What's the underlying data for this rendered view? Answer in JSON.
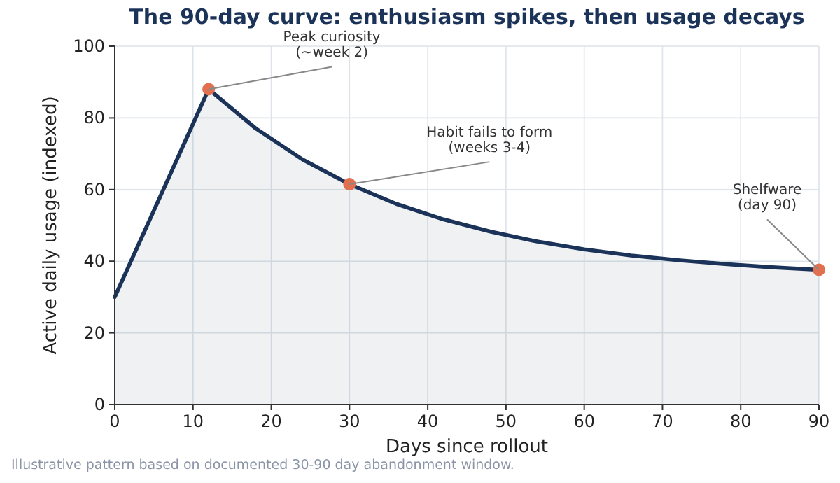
{
  "chart_data": {
    "type": "area",
    "title": "The 90-day curve: enthusiasm spikes, then usage decays",
    "xlabel": "Days since rollout",
    "ylabel": "Active daily usage (indexed)",
    "xlim": [
      0,
      90
    ],
    "xticks": [
      0,
      10,
      20,
      30,
      40,
      50,
      60,
      70,
      80,
      90
    ],
    "ylim": [
      0,
      100
    ],
    "yticks": [
      0,
      20,
      40,
      60,
      80,
      100
    ],
    "grid": true,
    "series": [
      {
        "color": "#1b3358",
        "x": [
          0,
          12,
          18,
          24,
          30,
          36,
          42,
          48,
          54,
          60,
          66,
          72,
          78,
          84,
          90
        ],
        "values": [
          30,
          88,
          77.1,
          68.4,
          61.5,
          56,
          51.7,
          48.3,
          45.5,
          43.3,
          41.6,
          40.3,
          39.2,
          38.3,
          37.6
        ]
      },
      {
        "type": "scatter",
        "color": "#e07050",
        "marker": "circle",
        "x": [
          12,
          30,
          90
        ],
        "values": [
          88,
          61.5,
          37.6
        ]
      }
    ],
    "annotations": [
      {
        "text": "Peak curiosity\n(~week 2)",
        "x": 12,
        "y": 88
      },
      {
        "text": "Habit fails to form\n(weeks 3-4)",
        "x": 30,
        "y": 61.5
      },
      {
        "text": "Shelfware\n(day 90)",
        "x": 90,
        "y": 37.6
      },
      "Illustrative pattern based on documented 30-90 day abandonment window."
    ]
  }
}
